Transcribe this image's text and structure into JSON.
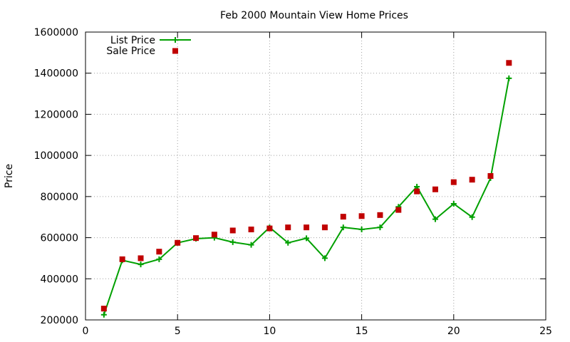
{
  "chart_data": {
    "type": "line",
    "title": "Feb 2000 Mountain View Home Prices",
    "xlabel": "",
    "ylabel": "Price",
    "xlim": [
      0,
      25
    ],
    "ylim": [
      200000,
      1600000
    ],
    "xticks": [
      0,
      5,
      10,
      15,
      20,
      25
    ],
    "yticks": [
      200000,
      400000,
      600000,
      800000,
      1000000,
      1200000,
      1400000,
      1600000
    ],
    "xtick_labels": [
      "0",
      "5",
      "10",
      "15",
      "20",
      "25"
    ],
    "ytick_labels": [
      "200000",
      "400000",
      "600000",
      "800000",
      "1000000",
      "1200000",
      "1400000",
      "1600000"
    ],
    "grid": true,
    "legend_position": "top-left",
    "x": [
      1,
      2,
      3,
      4,
      5,
      6,
      7,
      8,
      9,
      10,
      11,
      12,
      13,
      14,
      15,
      16,
      17,
      18,
      19,
      20,
      21,
      22,
      23
    ],
    "series": [
      {
        "name": "List Price",
        "style": "line-with-plus-markers",
        "color": "#00a000",
        "values": [
          225000,
          490000,
          470000,
          495000,
          575000,
          595000,
          600000,
          578000,
          565000,
          650000,
          575000,
          597000,
          500000,
          650000,
          640000,
          650000,
          750000,
          848000,
          690000,
          765000,
          700000,
          890000,
          1375000
        ]
      },
      {
        "name": "Sale Price",
        "style": "square-markers",
        "color": "#c00000",
        "values": [
          255000,
          495000,
          500000,
          532000,
          575000,
          598000,
          615000,
          635000,
          640000,
          645000,
          650000,
          650000,
          650000,
          702000,
          705000,
          710000,
          735000,
          825000,
          835000,
          870000,
          882000,
          900000,
          1450000
        ]
      }
    ]
  }
}
